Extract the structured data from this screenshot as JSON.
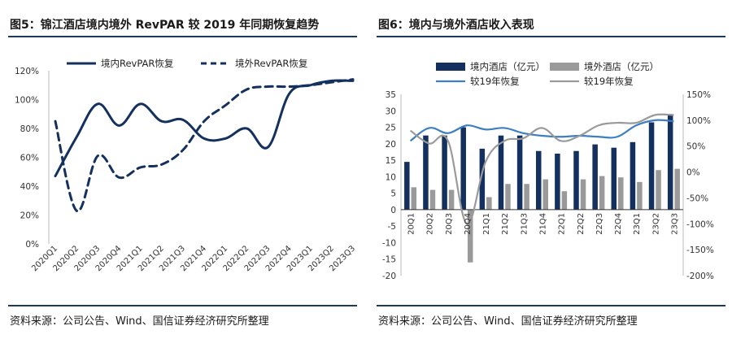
{
  "left": {
    "title": "图5：锦江酒店境内境外 RevPAR 较 2019 年同期恢复趋势",
    "source": "资料来源：公司公告、Wind、国信证券经济研究所整理"
  },
  "right": {
    "title": "图6：境内与境外酒店收入表现",
    "source": "资料来源：公司公告、Wind、国信证券经济研究所整理"
  },
  "colors": {
    "navy": "#14305f",
    "gray": "#9a9a9a",
    "lightblue": "#3d7fc1",
    "rule": "#1b3a5c"
  },
  "chart_data": [
    {
      "type": "line",
      "categories": [
        "2020Q1",
        "2020Q2",
        "2020Q3",
        "2020Q4",
        "2021Q1",
        "2021Q2",
        "2021Q3",
        "2021Q4",
        "2022Q1",
        "2022Q2",
        "2022Q3",
        "2022Q4",
        "2023Q1",
        "2023Q2",
        "2023Q3"
      ],
      "series": [
        {
          "name": "境内RevPAR恢复",
          "style": "solid",
          "color": "#14305f",
          "values": [
            0.47,
            0.74,
            0.97,
            0.82,
            0.97,
            0.85,
            0.86,
            0.73,
            0.73,
            0.8,
            0.67,
            1.04,
            1.1,
            1.13,
            1.13
          ]
        },
        {
          "name": "境外RevPAR恢复",
          "style": "dashed",
          "color": "#14305f",
          "values": [
            0.85,
            0.23,
            0.61,
            0.46,
            0.53,
            0.55,
            0.65,
            0.85,
            0.96,
            1.07,
            1.09,
            1.09,
            1.1,
            1.12,
            1.14
          ]
        }
      ],
      "y_format": "percent",
      "ylim": [
        0,
        1.2
      ],
      "yticks": [
        "0%",
        "20%",
        "40%",
        "60%",
        "80%",
        "100%",
        "120%"
      ],
      "legend": "top",
      "grid": false
    },
    {
      "type": "bar+line",
      "categories": [
        "20Q1",
        "20Q2",
        "20Q3",
        "20Q4",
        "21Q1",
        "21Q2",
        "21Q3",
        "21Q4",
        "22Q1",
        "22Q2",
        "22Q3",
        "22Q4",
        "23Q1",
        "23Q2",
        "23Q3"
      ],
      "bars": [
        {
          "name": "境内酒店（亿元）",
          "color": "#14305f",
          "values": [
            14.5,
            22.5,
            22.5,
            25,
            18.5,
            22.5,
            22.5,
            17.8,
            17,
            17.8,
            19.8,
            18.8,
            20.5,
            26.5,
            29
          ]
        },
        {
          "name": "境外酒店（亿元）",
          "color": "#9a9a9a",
          "values": [
            6.8,
            6,
            6,
            -16,
            3.8,
            7.8,
            7.8,
            9.2,
            5.6,
            9.2,
            10.2,
            9.8,
            8.4,
            12,
            12.4
          ]
        }
      ],
      "lines": [
        {
          "name": "较19年恢复",
          "color": "#3d7fc1",
          "axis": "right",
          "values": [
            60,
            85,
            75,
            90,
            82,
            85,
            75,
            70,
            68,
            70,
            68,
            68,
            90,
            100,
            98
          ]
        },
        {
          "name": "较19年恢复",
          "color": "#9a9a9a",
          "axis": "right",
          "values": [
            80,
            55,
            60,
            -100,
            20,
            60,
            65,
            85,
            60,
            70,
            90,
            95,
            95,
            110,
            110
          ]
        }
      ],
      "yleft": {
        "min": -20,
        "max": 35,
        "ticks": [
          -20,
          -15,
          -10,
          -5,
          0,
          5,
          10,
          15,
          20,
          25,
          30,
          35
        ]
      },
      "yright": {
        "min": -200,
        "max": 150,
        "ticks": [
          "-200%",
          "-150%",
          "-100%",
          "-50%",
          "0%",
          "50%",
          "100%",
          "150%"
        ]
      },
      "legend": "top"
    }
  ]
}
